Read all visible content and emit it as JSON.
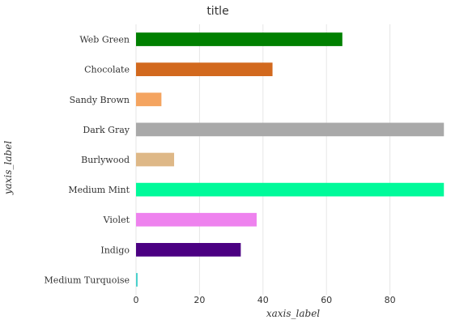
{
  "chart_data": {
    "type": "bar",
    "orientation": "horizontal",
    "title": "title",
    "xlabel": "xaxis_label",
    "ylabel": "yaxis_label",
    "xlim": [
      0,
      100
    ],
    "xticks": [
      0,
      20,
      40,
      60,
      80
    ],
    "grid": false,
    "legend": "none",
    "categories": [
      "Medium Turquoise",
      "Indigo",
      "Violet",
      "Medium Mint",
      "Burlywood",
      "Dark Gray",
      "Sandy Brown",
      "Chocolate",
      "Web Green"
    ],
    "values": [
      0.5,
      33,
      38,
      97,
      12,
      97,
      8,
      43,
      65
    ],
    "colors": [
      "#48d1cc",
      "#4b0082",
      "#ee82ee",
      "#00fa9a",
      "#deb887",
      "#a9a9a9",
      "#f4a460",
      "#d2691e",
      "#008000"
    ]
  }
}
